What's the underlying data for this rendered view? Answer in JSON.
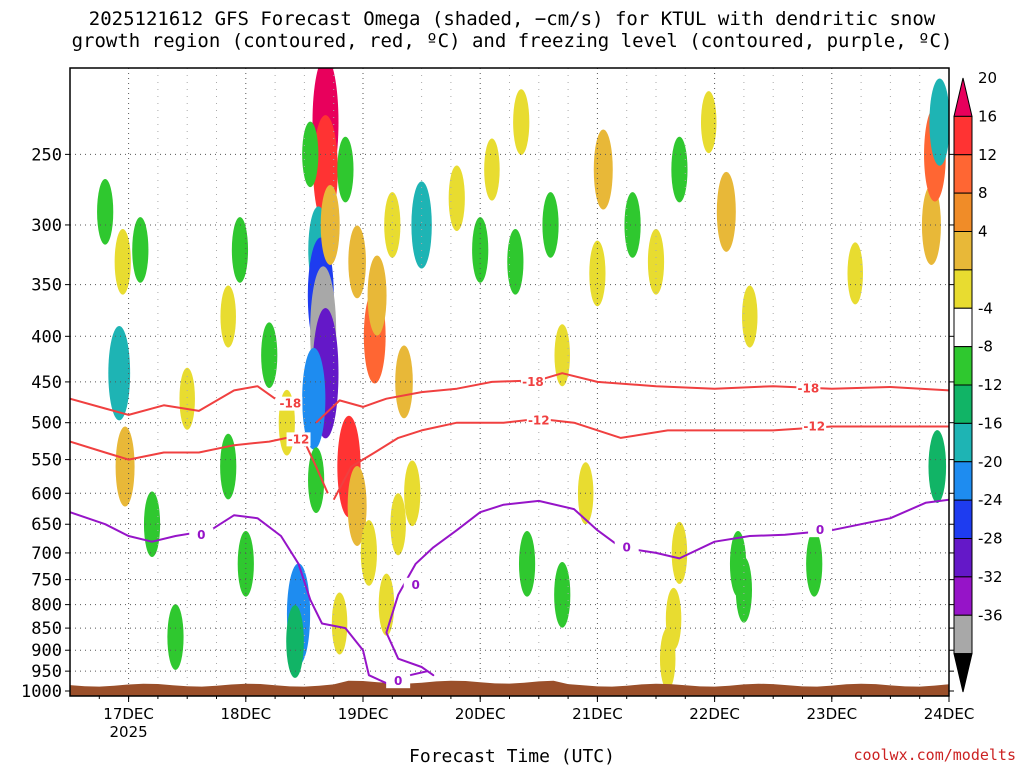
{
  "title": {
    "line1": "2025121612 GFS Forecast Omega (shaded, −cm/s) for KTUL with dendritic snow",
    "line2": "growth region (contoured, red, ºC) and freezing level (contoured, purple, ºC)"
  },
  "credit": "coolwx.com/modelts",
  "chart_data": {
    "type": "heatmap",
    "title": "2025121612 GFS Forecast Omega (shaded, −cm/s) for KTUL with dendritic snow growth region (contoured, red, ºC) and freezing level (contoured, purple, ºC)",
    "xlabel": "Forecast Time (UTC)",
    "ylabel": "",
    "x_ticks": [
      "17DEC",
      "18DEC",
      "19DEC",
      "20DEC",
      "21DEC",
      "22DEC",
      "23DEC",
      "24DEC"
    ],
    "x_year_label": "2025",
    "xlim_days": [
      16.5,
      24.0
    ],
    "y_ticks": [
      250,
      300,
      350,
      400,
      450,
      500,
      550,
      600,
      650,
      700,
      750,
      800,
      850,
      900,
      950,
      1000
    ],
    "ylim_hpa": [
      200,
      1013
    ],
    "colorbar": {
      "labels": [
        20,
        16,
        12,
        8,
        4,
        -4,
        -8,
        -12,
        -16,
        -20,
        -24,
        -28,
        -32,
        -36
      ],
      "colors": [
        "#e8005c",
        "#ff3333",
        "#ff6633",
        "#f08c28",
        "#e8b838",
        "#e8dc30",
        "#ffffff",
        "#2fc82f",
        "#11b466",
        "#1eb4b4",
        "#1e8cf0",
        "#1e3cf0",
        "#6418c8",
        "#9614c8",
        "#a8a8a8",
        "#000000"
      ]
    },
    "omega_cells": [
      {
        "t": 18.68,
        "p": 230,
        "v": 24
      },
      {
        "t": 18.68,
        "p": 260,
        "v": 18
      },
      {
        "t": 18.62,
        "p": 320,
        "v": -12
      },
      {
        "t": 18.64,
        "p": 360,
        "v": -20
      },
      {
        "t": 18.66,
        "p": 395,
        "v": -34
      },
      {
        "t": 18.68,
        "p": 440,
        "v": -26
      },
      {
        "t": 18.58,
        "p": 470,
        "v": -16
      },
      {
        "t": 18.72,
        "p": 300,
        "v": 10
      },
      {
        "t": 18.55,
        "p": 250,
        "v": -6
      },
      {
        "t": 18.85,
        "p": 260,
        "v": -6
      },
      {
        "t": 18.95,
        "p": 330,
        "v": 8
      },
      {
        "t": 19.1,
        "p": 400,
        "v": 14
      },
      {
        "t": 19.12,
        "p": 360,
        "v": 10
      },
      {
        "t": 19.25,
        "p": 300,
        "v": 6
      },
      {
        "t": 19.35,
        "p": 450,
        "v": 8
      },
      {
        "t": 18.88,
        "p": 560,
        "v": 16
      },
      {
        "t": 18.95,
        "p": 620,
        "v": 10
      },
      {
        "t": 19.05,
        "p": 700,
        "v": 6
      },
      {
        "t": 19.3,
        "p": 650,
        "v": 5
      },
      {
        "t": 19.5,
        "p": 300,
        "v": -12
      },
      {
        "t": 19.42,
        "p": 600,
        "v": 6
      },
      {
        "t": 18.45,
        "p": 820,
        "v": -16
      },
      {
        "t": 18.42,
        "p": 880,
        "v": -8
      },
      {
        "t": 18.6,
        "p": 580,
        "v": -6
      },
      {
        "t": 18.35,
        "p": 500,
        "v": 6
      },
      {
        "t": 18.2,
        "p": 420,
        "v": -6
      },
      {
        "t": 17.95,
        "p": 320,
        "v": -6
      },
      {
        "t": 17.85,
        "p": 380,
        "v": 5
      },
      {
        "t": 17.1,
        "p": 320,
        "v": -6
      },
      {
        "t": 16.95,
        "p": 330,
        "v": 6
      },
      {
        "t": 16.92,
        "p": 440,
        "v": -14
      },
      {
        "t": 16.97,
        "p": 560,
        "v": 10
      },
      {
        "t": 17.2,
        "p": 650,
        "v": -6
      },
      {
        "t": 16.8,
        "p": 290,
        "v": -6
      },
      {
        "t": 17.5,
        "p": 470,
        "v": 5
      },
      {
        "t": 17.85,
        "p": 560,
        "v": -6
      },
      {
        "t": 18.0,
        "p": 720,
        "v": -6
      },
      {
        "t": 17.4,
        "p": 870,
        "v": -6
      },
      {
        "t": 19.8,
        "p": 280,
        "v": 6
      },
      {
        "t": 20.0,
        "p": 320,
        "v": -6
      },
      {
        "t": 20.1,
        "p": 260,
        "v": 5
      },
      {
        "t": 20.3,
        "p": 330,
        "v": -6
      },
      {
        "t": 20.35,
        "p": 230,
        "v": 6
      },
      {
        "t": 20.6,
        "p": 300,
        "v": -6
      },
      {
        "t": 20.7,
        "p": 420,
        "v": 5
      },
      {
        "t": 21.0,
        "p": 340,
        "v": 6
      },
      {
        "t": 21.05,
        "p": 260,
        "v": 10
      },
      {
        "t": 21.3,
        "p": 300,
        "v": -6
      },
      {
        "t": 21.5,
        "p": 330,
        "v": 6
      },
      {
        "t": 21.7,
        "p": 260,
        "v": -6
      },
      {
        "t": 21.95,
        "p": 230,
        "v": 5
      },
      {
        "t": 22.1,
        "p": 290,
        "v": 10
      },
      {
        "t": 22.3,
        "p": 380,
        "v": 5
      },
      {
        "t": 23.2,
        "p": 340,
        "v": 5
      },
      {
        "t": 22.2,
        "p": 720,
        "v": -6
      },
      {
        "t": 22.25,
        "p": 770,
        "v": -6
      },
      {
        "t": 21.7,
        "p": 700,
        "v": 5
      },
      {
        "t": 21.65,
        "p": 830,
        "v": 5
      },
      {
        "t": 21.6,
        "p": 920,
        "v": 5
      },
      {
        "t": 20.4,
        "p": 720,
        "v": -6
      },
      {
        "t": 20.7,
        "p": 780,
        "v": -6
      },
      {
        "t": 23.85,
        "p": 300,
        "v": 10
      },
      {
        "t": 23.88,
        "p": 250,
        "v": 14
      },
      {
        "t": 23.9,
        "p": 560,
        "v": -8
      },
      {
        "t": 23.92,
        "p": 230,
        "v": -12
      },
      {
        "t": 22.85,
        "p": 720,
        "v": -6
      },
      {
        "t": 20.9,
        "p": 600,
        "v": 5
      },
      {
        "t": 19.2,
        "p": 800,
        "v": 5
      },
      {
        "t": 18.8,
        "p": 840,
        "v": 5
      }
    ],
    "contours": [
      {
        "label": "-18",
        "color": "#f04040",
        "t": [
          16.5,
          16.8,
          17.0,
          17.3,
          17.6,
          17.9,
          18.1,
          18.25
        ],
        "p": [
          470,
          482,
          490,
          478,
          485,
          460,
          455,
          470
        ],
        "t2": [
          18.6,
          18.8,
          19.0,
          19.2,
          19.5,
          19.8,
          20.1,
          20.5,
          20.7,
          21.0,
          21.5,
          22.0,
          22.5,
          23.0,
          23.5,
          24.0
        ],
        "p2": [
          500,
          472,
          480,
          470,
          462,
          458,
          450,
          448,
          440,
          450,
          455,
          458,
          455,
          458,
          456,
          460
        ],
        "label_pos": [
          {
            "t": 20.45,
            "p": 450
          },
          {
            "t": 22.8,
            "p": 458
          },
          {
            "t": 18.38,
            "p": 476
          }
        ]
      },
      {
        "label": "-12",
        "color": "#f04040",
        "t": [
          16.5,
          16.8,
          17.0,
          17.3,
          17.6,
          17.9,
          18.2,
          18.35,
          18.5,
          18.6,
          18.7
        ],
        "p": [
          525,
          540,
          550,
          540,
          540,
          530,
          525,
          520,
          525,
          560,
          600
        ],
        "t2": [
          18.75,
          18.9,
          19.1,
          19.3,
          19.5,
          19.8,
          20.2,
          20.5,
          20.8,
          21.2,
          21.6,
          22.0,
          22.5,
          23.0,
          23.5,
          24.0
        ],
        "p2": [
          610,
          560,
          540,
          520,
          510,
          500,
          500,
          495,
          500,
          520,
          510,
          510,
          510,
          505,
          505,
          505
        ],
        "label_pos": [
          {
            "t": 20.5,
            "p": 497
          },
          {
            "t": 22.85,
            "p": 505
          },
          {
            "t": 18.45,
            "p": 522
          }
        ]
      },
      {
        "label": "0",
        "color": "#9614c8",
        "t": [
          16.5,
          16.8,
          17.0,
          17.2,
          17.4,
          17.7,
          17.9,
          18.1,
          18.3,
          18.45,
          18.55,
          18.65,
          18.85,
          19.0,
          19.05,
          19.2,
          19.4,
          19.55,
          19.6,
          19.5,
          19.3,
          19.2,
          19.3,
          19.45,
          19.6,
          19.8,
          20.0,
          20.2,
          20.5,
          20.8,
          21.0,
          21.2,
          21.5,
          21.7,
          22.0,
          22.3,
          22.6,
          23.0,
          23.5,
          23.8,
          24.0
        ],
        "p": [
          630,
          650,
          670,
          680,
          670,
          660,
          635,
          640,
          670,
          720,
          790,
          840,
          850,
          900,
          960,
          980,
          960,
          950,
          960,
          940,
          920,
          860,
          780,
          720,
          690,
          660,
          630,
          618,
          612,
          625,
          660,
          690,
          700,
          710,
          680,
          670,
          668,
          660,
          640,
          615,
          610
        ],
        "label_pos": [
          {
            "t": 17.62,
            "p": 668
          },
          {
            "t": 19.45,
            "p": 760
          },
          {
            "t": 21.25,
            "p": 690
          },
          {
            "t": 22.9,
            "p": 660
          },
          {
            "t": 19.3,
            "p": 975
          }
        ]
      }
    ],
    "terrain_top_hpa": 985
  }
}
